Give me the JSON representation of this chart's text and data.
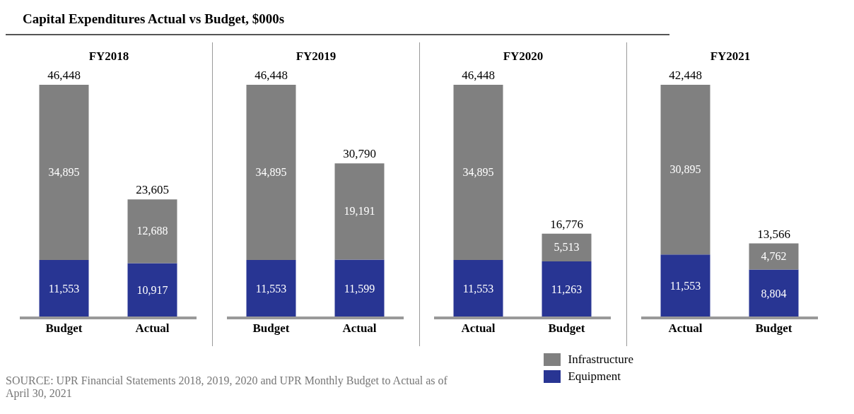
{
  "chart_data": [
    {
      "type": "bar",
      "title": "Capital Expenditures Actual vs Budget, $000s",
      "subtitle": "FY2018",
      "categories": [
        "Budget",
        "Actual"
      ],
      "stacked": true,
      "totals": [
        "46,448",
        "23,605"
      ],
      "series": [
        {
          "color": "#283593",
          "values": [
            11553,
            10917
          ],
          "value_labels": [
            "11,553",
            "10,917"
          ]
        },
        {
          "color": "#808080",
          "values": [
            34895,
            12688
          ],
          "value_labels": [
            "34,895",
            "12,688"
          ]
        }
      ],
      "annotations": [
        "SOURCE: UPR Financial Statements 2018, 2019, 2020 and UPR Monthly Budget to Actual as of April 30, 2021"
      ]
    },
    {
      "type": "bar",
      "title": "FY2019",
      "categories": [
        "Budget",
        "Actual"
      ],
      "stacked": true,
      "totals": [
        "46,448",
        "30,790"
      ],
      "series": [
        {
          "color": "#283593",
          "values": [
            11553,
            11599
          ],
          "value_labels": [
            "11,553",
            "11,599"
          ]
        },
        {
          "color": "#808080",
          "values": [
            34895,
            19191
          ],
          "value_labels": [
            "34,895",
            "19,191"
          ]
        }
      ]
    },
    {
      "type": "bar",
      "title": "FY2020",
      "categories": [
        "Actual",
        "Budget"
      ],
      "stacked": true,
      "totals": [
        "46,448",
        "16,776"
      ],
      "legend": "bottom right",
      "series": [
        {
          "name": "Equipment",
          "color": "#283593",
          "values": [
            11553,
            11263
          ],
          "value_labels": [
            "11,553",
            "11,263"
          ]
        },
        {
          "name": "Infrastructure",
          "color": "#808080",
          "values": [
            34895,
            5513
          ],
          "value_labels": [
            "34,895",
            "5,513"
          ]
        }
      ]
    },
    {
      "type": "bar",
      "title": "FY2021",
      "categories": [
        "Actual",
        "Budget"
      ],
      "stacked": true,
      "totals": [
        "42,448",
        "13,566"
      ],
      "series": [
        {
          "color": "#283593",
          "values": [
            11553,
            8804
          ],
          "value_labels": [
            "11,553",
            "8,804"
          ]
        },
        {
          "color": "#808080",
          "values": [
            30895,
            4762
          ],
          "value_labels": [
            "30,895",
            "4,762"
          ]
        }
      ]
    }
  ]
}
